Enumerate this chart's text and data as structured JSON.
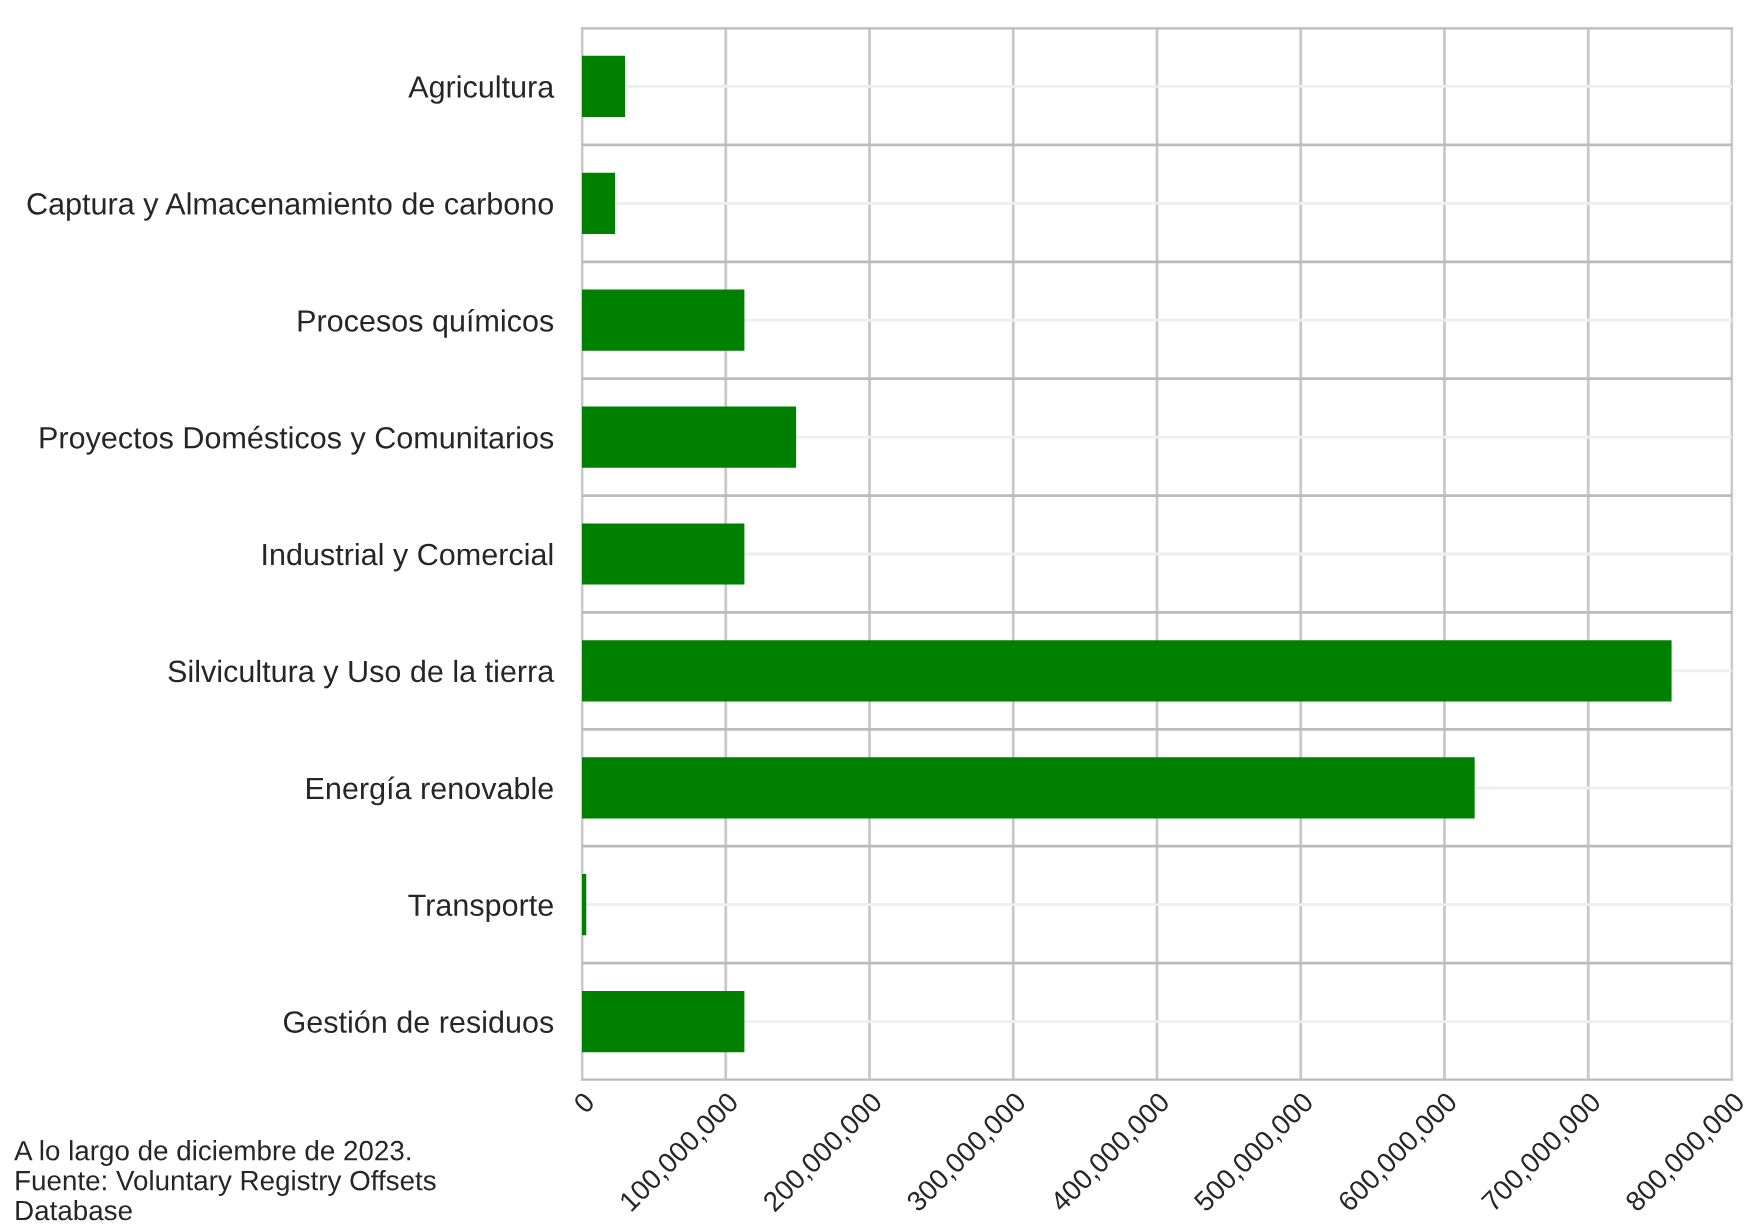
{
  "chart_data": {
    "type": "bar",
    "orientation": "horizontal",
    "categories": [
      "Agricultura",
      "Captura y Almacenamiento de carbono",
      "Procesos químicos",
      "Proyectos Domésticos y Comunitarios",
      "Industrial y Comercial",
      "Silvicultura y Uso de la tierra",
      "Energía renovable",
      "Transporte",
      "Gestión de residuos"
    ],
    "values": [
      29000000,
      22000000,
      112000000,
      148000000,
      112000000,
      757000000,
      620000000,
      2000000,
      112000000
    ],
    "color": "#008000",
    "xlim": [
      0,
      800000000
    ],
    "xticks": [
      {
        "value": 0,
        "label": "0"
      },
      {
        "value": 100000000,
        "label": "100,000,000"
      },
      {
        "value": 200000000,
        "label": "200,000,000"
      },
      {
        "value": 300000000,
        "label": "300,000,000"
      },
      {
        "value": 400000000,
        "label": "400,000,000"
      },
      {
        "value": 500000000,
        "label": "500,000,000"
      },
      {
        "value": 600000000,
        "label": "600,000,000"
      },
      {
        "value": 700000000,
        "label": "700,000,000"
      },
      {
        "value": 800000000,
        "label": "800,000,000"
      }
    ],
    "grid": true,
    "annotations": [
      "A lo largo de diciembre de 2023.\nFuente: Voluntary Registry Offsets\nDatabase"
    ]
  }
}
